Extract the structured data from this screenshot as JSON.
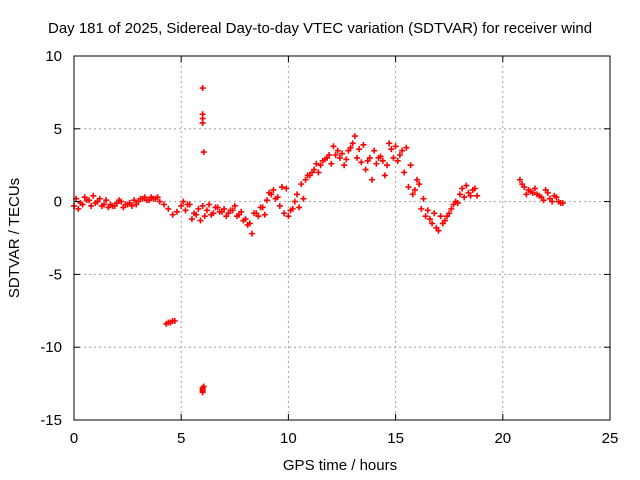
{
  "chart_data": {
    "type": "scatter",
    "title": "Day 181 of 2025, Sidereal Day-to-day VTEC variation (SDTVAR) for receiver wind",
    "xlabel": "GPS time / hours",
    "ylabel": "SDTVAR / TECUs",
    "xlim": [
      0,
      25
    ],
    "ylim": [
      -15,
      10
    ],
    "xticks": [
      0,
      5,
      10,
      15,
      20,
      25
    ],
    "yticks": [
      -15,
      -10,
      -5,
      0,
      5,
      10
    ],
    "xtick_labels": [
      "0",
      "5",
      "10",
      "15",
      "20",
      "25"
    ],
    "ytick_labels": [
      "-15",
      "-10",
      "-5",
      "0",
      "5",
      "10"
    ],
    "grid": true,
    "marker": "plus",
    "series": [
      {
        "name": "SDTVAR",
        "color": "#ff0000",
        "x": [
          0.0,
          0.2,
          0.4,
          0.6,
          0.8,
          1.0,
          1.2,
          1.4,
          1.6,
          1.8,
          2.0,
          2.2,
          2.4,
          2.6,
          2.8,
          3.0,
          3.2,
          3.4,
          3.6,
          3.8,
          4.0,
          4.2,
          4.4,
          4.6,
          4.8,
          5.0,
          5.2,
          5.4,
          5.6,
          5.8,
          6.0,
          6.2,
          6.4,
          6.6,
          6.8,
          7.0,
          7.2,
          7.4,
          7.6,
          7.8,
          8.0,
          8.2,
          8.4,
          8.6,
          8.8,
          9.0,
          9.2,
          9.4,
          9.6,
          9.8,
          10.0,
          10.2,
          10.4,
          10.6,
          10.8,
          11.0,
          11.2,
          11.4,
          11.6,
          11.8,
          12.0,
          12.2,
          12.4,
          12.6,
          12.8,
          13.0,
          13.2,
          13.4,
          13.6,
          13.8,
          14.0,
          14.2,
          14.4,
          14.6,
          14.8,
          15.0,
          15.2,
          15.4,
          15.6,
          15.8,
          16.0,
          16.2,
          16.4,
          16.6,
          16.8,
          17.0,
          17.2,
          17.4,
          17.6,
          17.8,
          18.0,
          18.2,
          18.4,
          18.6,
          18.8,
          20.8,
          21.0,
          21.2,
          21.4,
          21.6,
          21.8,
          22.0,
          22.2,
          22.4,
          22.6,
          22.8,
          0.1,
          0.3,
          0.5,
          0.7,
          0.9,
          1.1,
          1.3,
          1.5,
          1.7,
          1.9,
          2.1,
          2.3,
          2.5,
          2.7,
          2.9,
          3.1,
          3.3,
          3.5,
          3.7,
          3.9,
          5.1,
          5.3,
          5.5,
          5.7,
          5.9,
          6.1,
          6.3,
          6.5,
          6.7,
          6.9,
          7.1,
          7.3,
          7.5,
          7.7,
          7.9,
          8.1,
          8.3,
          8.5,
          8.7,
          8.9,
          9.1,
          9.3,
          9.5,
          9.7,
          9.9,
          10.1,
          10.3,
          10.5,
          10.7,
          10.9,
          11.1,
          11.3,
          11.5,
          11.7,
          11.9,
          12.1,
          12.3,
          12.5,
          12.7,
          12.9,
          13.1,
          13.3,
          13.5,
          13.7,
          13.9,
          14.1,
          14.3,
          14.5,
          14.7,
          14.9,
          15.1,
          15.3,
          15.5,
          15.7,
          15.9,
          16.1,
          16.3,
          16.5,
          16.7,
          16.9,
          17.1,
          17.3,
          17.5,
          17.7,
          17.9,
          18.1,
          18.3,
          18.5,
          18.7,
          20.9,
          21.1,
          21.3,
          21.5,
          21.7,
          21.9,
          22.1,
          22.3,
          22.5,
          22.7,
          4.3,
          4.4,
          4.5,
          4.6,
          4.7,
          6.0,
          6.0,
          6.0,
          6.0,
          6.05,
          6.0,
          6.0,
          6.0,
          6.0,
          6.05
        ],
        "y": [
          -0.3,
          -0.5,
          -0.2,
          0.1,
          -0.3,
          -0.1,
          0.2,
          -0.2,
          -0.4,
          -0.3,
          -0.1,
          0.0,
          -0.2,
          -0.1,
          0.1,
          0.0,
          0.2,
          0.1,
          0.3,
          0.2,
          0.0,
          -0.2,
          -0.5,
          -0.9,
          -0.7,
          -0.3,
          -0.6,
          -0.2,
          -0.8,
          -0.5,
          -0.3,
          -0.6,
          -0.9,
          -0.4,
          -0.7,
          -0.5,
          -0.8,
          -0.6,
          -1.0,
          -0.7,
          -1.2,
          -1.5,
          -0.8,
          -1.0,
          -0.4,
          0.1,
          0.5,
          0.2,
          -0.3,
          -0.8,
          -1.0,
          -0.5,
          0.5,
          1.2,
          1.5,
          1.8,
          2.2,
          2.0,
          2.8,
          3.0,
          2.6,
          3.2,
          3.0,
          2.5,
          3.5,
          4.0,
          3.0,
          2.7,
          2.2,
          3.0,
          3.5,
          3.0,
          2.8,
          2.5,
          3.6,
          3.8,
          3.2,
          2.0,
          1.0,
          0.5,
          1.5,
          -0.5,
          -1.0,
          -1.2,
          -0.8,
          -2.0,
          -1.5,
          -1.0,
          -0.5,
          0.0,
          0.5,
          0.3,
          0.6,
          0.8,
          0.4,
          1.5,
          1.0,
          0.8,
          0.6,
          0.5,
          0.3,
          0.8,
          0.2,
          0.4,
          0.0,
          -0.1,
          0.2,
          -0.1,
          0.3,
          0.1,
          0.4,
          0.0,
          -0.3,
          0.1,
          -0.2,
          -0.3,
          0.1,
          -0.4,
          -0.2,
          -0.3,
          -0.2,
          0.2,
          0.3,
          0.1,
          0.2,
          0.3,
          0.0,
          -0.2,
          -1.2,
          -0.9,
          -1.3,
          -1.0,
          -0.2,
          -0.8,
          -0.4,
          -0.7,
          -1.0,
          -0.6,
          -0.3,
          -0.9,
          -1.3,
          -1.6,
          -2.2,
          -0.8,
          -0.4,
          -0.9,
          0.6,
          0.8,
          0.3,
          1.0,
          0.9,
          -0.6,
          0.0,
          -0.4,
          0.2,
          1.8,
          2.0,
          2.6,
          2.5,
          2.9,
          3.2,
          3.8,
          3.5,
          3.3,
          2.9,
          3.7,
          4.5,
          3.6,
          3.9,
          2.8,
          1.5,
          2.6,
          3.1,
          1.8,
          4.0,
          3.0,
          2.8,
          3.5,
          3.7,
          2.5,
          0.8,
          1.2,
          0.2,
          -0.6,
          -1.5,
          -1.8,
          -1.0,
          -1.3,
          -0.8,
          -0.2,
          -0.1,
          0.9,
          1.1,
          0.4,
          0.9,
          1.2,
          0.5,
          0.7,
          0.9,
          0.4,
          0.1,
          0.6,
          0.0,
          0.3,
          -0.1,
          -8.4,
          -8.3,
          -8.3,
          -8.2,
          -8.2,
          7.8,
          6.0,
          5.7,
          5.4,
          3.4,
          -12.8,
          -13.0,
          -13.1,
          -12.9,
          -12.7
        ]
      }
    ]
  }
}
